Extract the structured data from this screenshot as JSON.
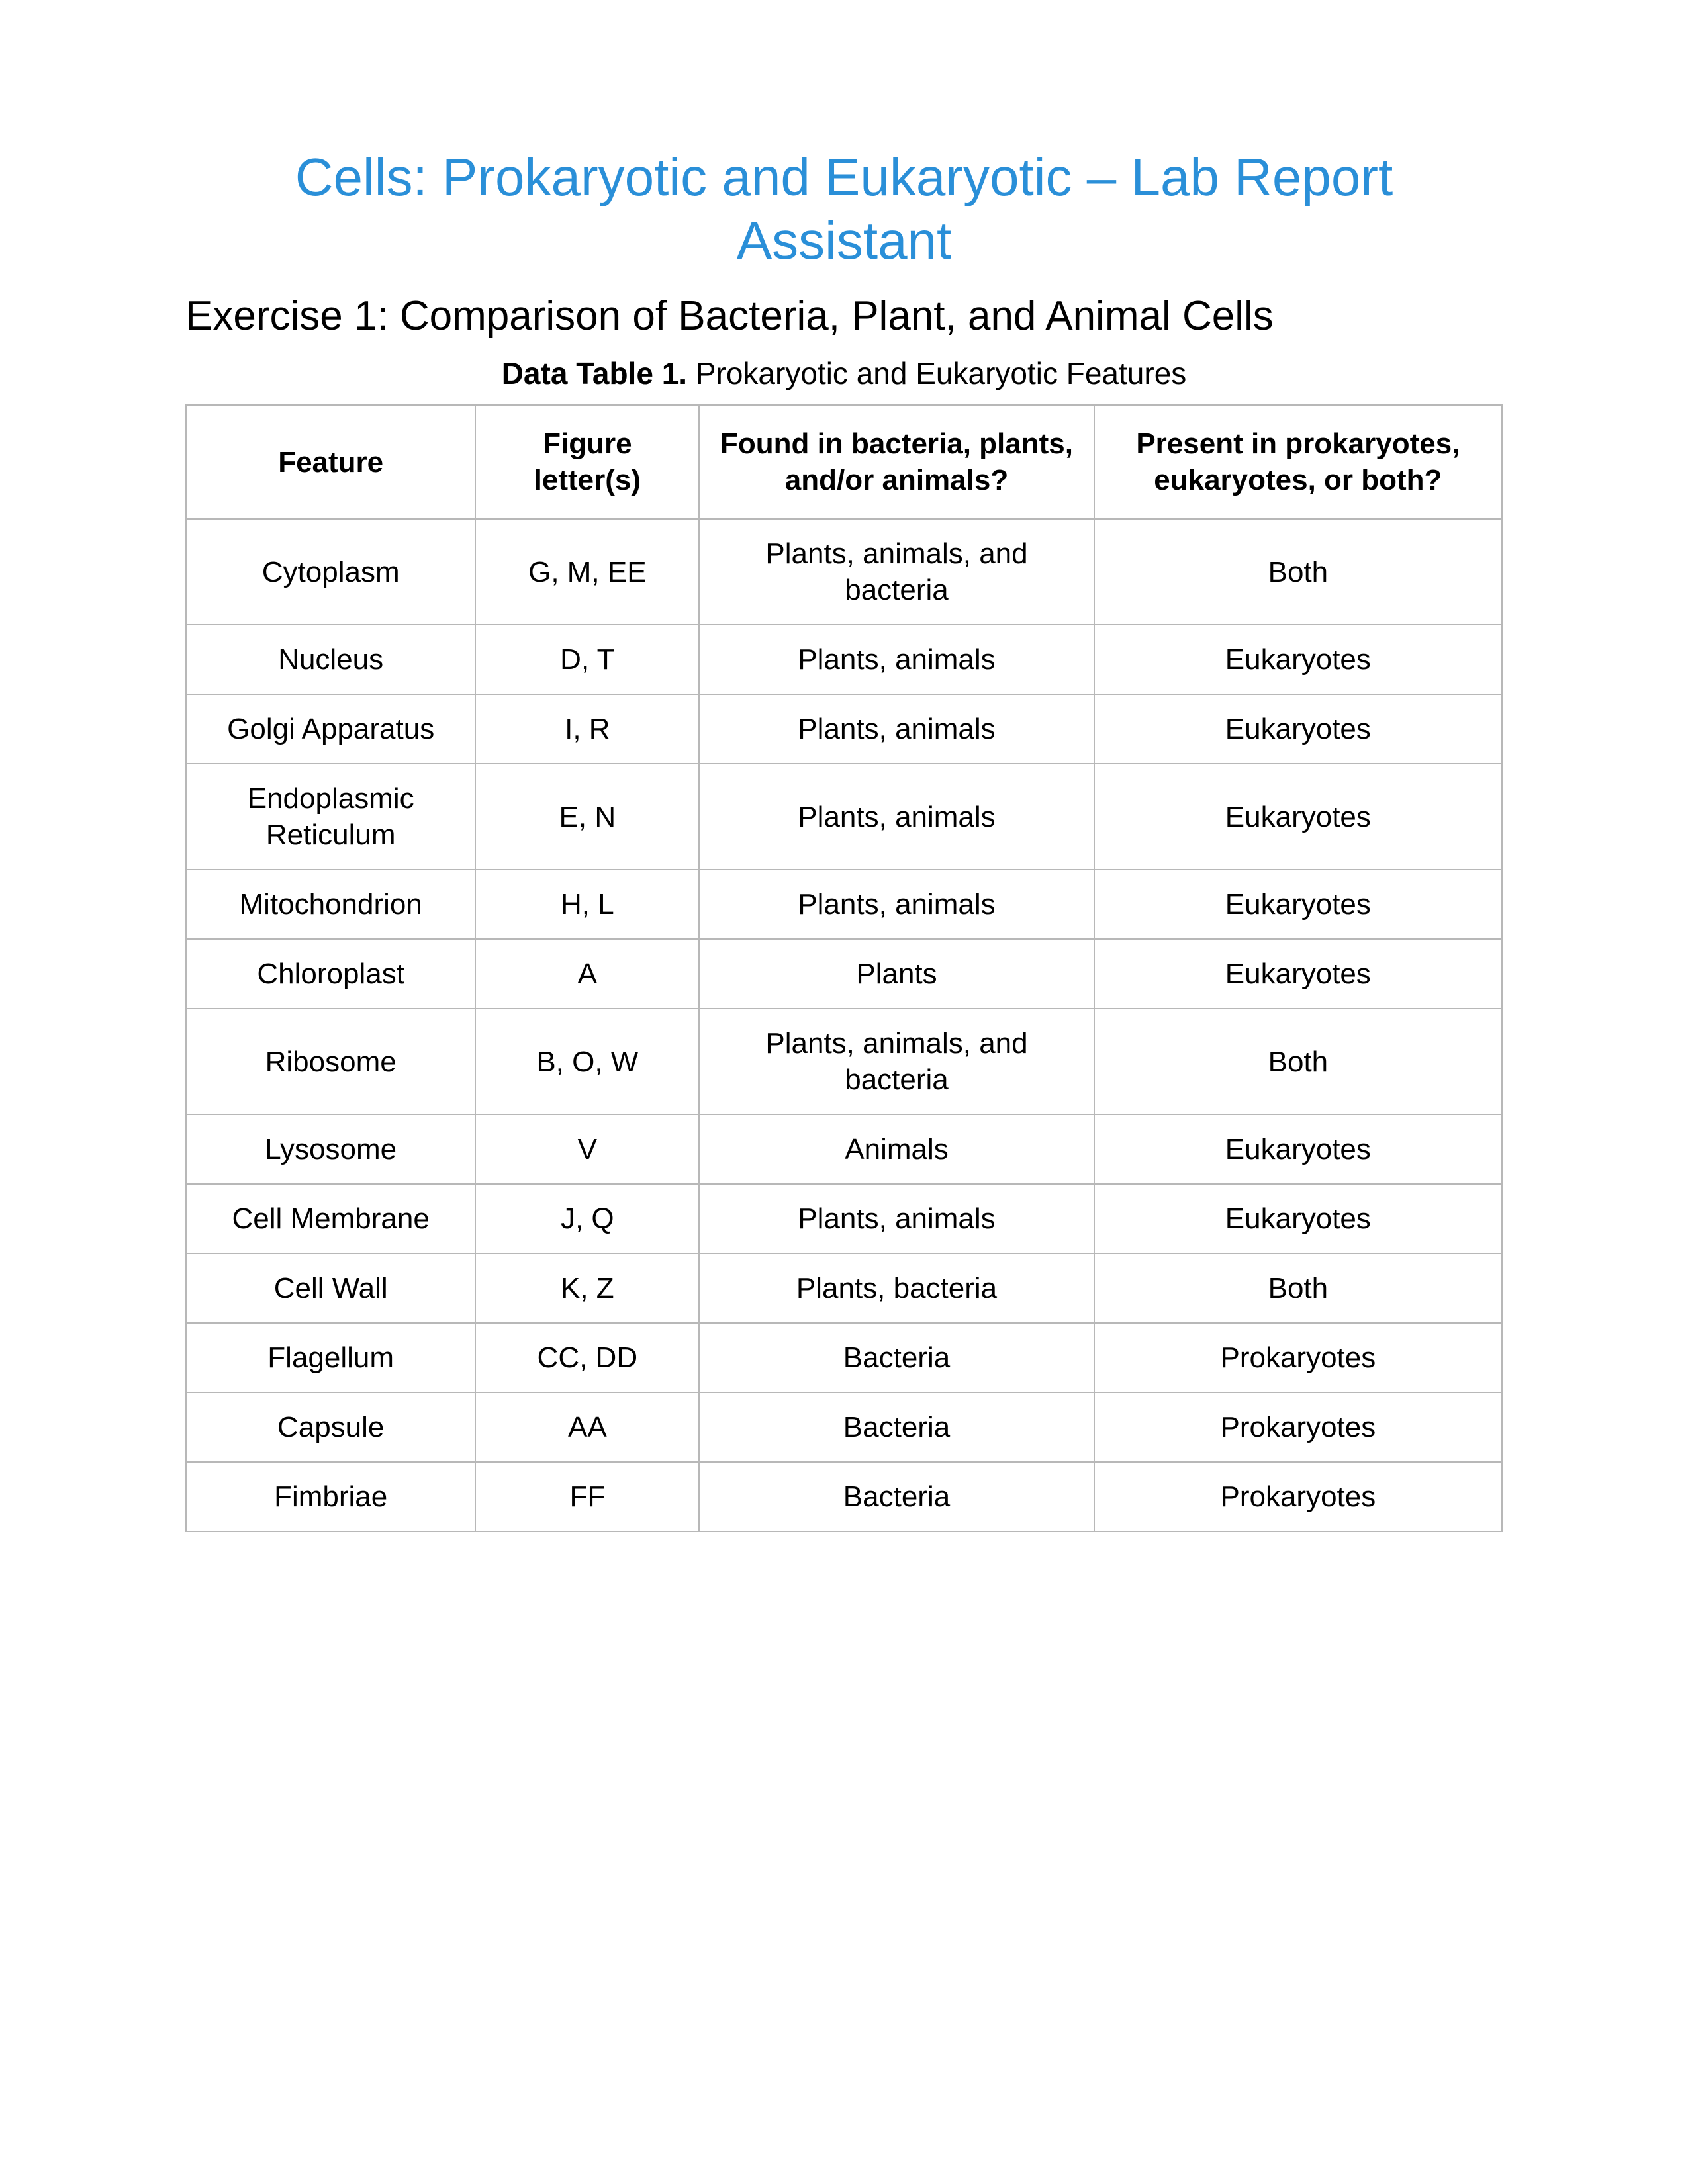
{
  "document": {
    "title": "Cells: Prokaryotic and Eukaryotic – Lab Report Assistant",
    "title_color": "#2a8fd8",
    "title_fontsize": 80,
    "exercise_heading": "Exercise 1: Comparison of Bacteria, Plant, and Animal Cells",
    "exercise_fontsize": 62,
    "table_caption_bold": "Data Table 1.",
    "table_caption_rest": " Prokaryotic and Eukaryotic Features",
    "caption_fontsize": 46,
    "background_color": "#ffffff"
  },
  "table": {
    "type": "table",
    "border_color": "#b8b8b8",
    "text_color": "#000000",
    "cell_fontsize": 44,
    "column_widths_pct": [
      22,
      17,
      30,
      31
    ],
    "columns": [
      "Feature",
      "Figure letter(s)",
      "Found in bacteria, plants, and/or animals?",
      "Present in prokaryotes, eukaryotes, or both?"
    ],
    "rows": [
      [
        "Cytoplasm",
        "G, M, EE",
        "Plants, animals, and bacteria",
        "Both"
      ],
      [
        "Nucleus",
        "D, T",
        "Plants, animals",
        "Eukaryotes"
      ],
      [
        "Golgi Apparatus",
        "I, R",
        "Plants, animals",
        "Eukaryotes"
      ],
      [
        "Endoplasmic Reticulum",
        "E, N",
        "Plants, animals",
        "Eukaryotes"
      ],
      [
        "Mitochondrion",
        "H, L",
        "Plants, animals",
        "Eukaryotes"
      ],
      [
        "Chloroplast",
        "A",
        "Plants",
        "Eukaryotes"
      ],
      [
        "Ribosome",
        "B, O, W",
        "Plants, animals, and bacteria",
        "Both"
      ],
      [
        "Lysosome",
        "V",
        "Animals",
        "Eukaryotes"
      ],
      [
        "Cell Membrane",
        "J, Q",
        "Plants, animals",
        "Eukaryotes"
      ],
      [
        "Cell Wall",
        "K, Z",
        "Plants, bacteria",
        "Both"
      ],
      [
        "Flagellum",
        "CC, DD",
        "Bacteria",
        "Prokaryotes"
      ],
      [
        "Capsule",
        "AA",
        "Bacteria",
        "Prokaryotes"
      ],
      [
        "Fimbriae",
        "FF",
        "Bacteria",
        "Prokaryotes"
      ]
    ]
  }
}
